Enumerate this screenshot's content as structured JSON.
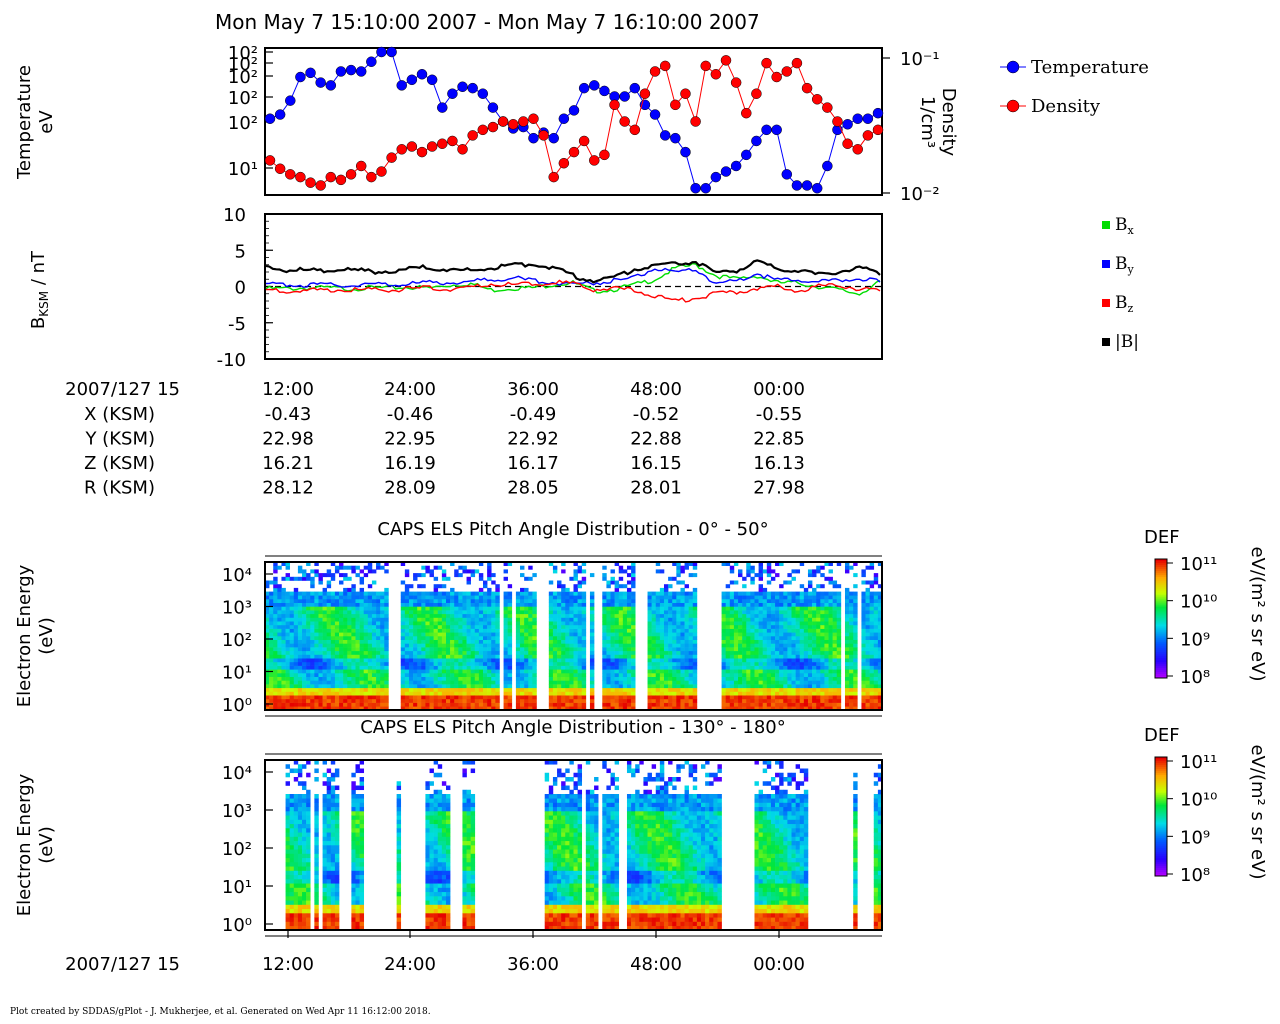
{
  "title": "Mon May 7 15:10:00 2007 - Mon May 7 16:10:00 2007",
  "footer": "Plot created by SDDAS/gPlot - J. Mukherjee, et al.  Generated on Wed Apr 11 16:12:00 2018.",
  "colors": {
    "temperature": "#0000ff",
    "density": "#ff0000",
    "bx": "#00dd00",
    "by": "#0000ff",
    "bz": "#ff0000",
    "bmag": "#000000"
  },
  "chart_data": [
    {
      "type": "line",
      "panel": "temperature-density",
      "ylabel_lines": [
        "Temperature",
        "eV"
      ],
      "y2label_lines": [
        "Density",
        "1/cm³"
      ],
      "yticks_left": [
        "10²",
        "10²",
        "10²",
        "10²",
        "10²",
        "10¹"
      ],
      "yticks_right": [
        "10⁻¹",
        "10⁻²"
      ],
      "ylim_right": [
        0.01,
        0.1
      ],
      "right_scale": "log",
      "legend": [
        "Temperature",
        "Density"
      ],
      "legend_placement": "right",
      "x_minutes": [
        0,
        1,
        2,
        3,
        4,
        5,
        6,
        7,
        8,
        9,
        10,
        11,
        12,
        13,
        14,
        15,
        16,
        17,
        18,
        19,
        20,
        21,
        22,
        23,
        24,
        25,
        26,
        27,
        28,
        29,
        30,
        31,
        32,
        33,
        34,
        35,
        36,
        37,
        38,
        39,
        40,
        41,
        42,
        43,
        44,
        45,
        46,
        47,
        48,
        49,
        50,
        51,
        52,
        53,
        54,
        55,
        56,
        57,
        58,
        59,
        60
      ],
      "series": [
        {
          "name": "Temperature",
          "values_norm": [
            0.52,
            0.55,
            0.65,
            0.82,
            0.85,
            0.78,
            0.76,
            0.86,
            0.87,
            0.86,
            0.93,
            1.0,
            1.0,
            0.76,
            0.8,
            0.84,
            0.8,
            0.6,
            0.7,
            0.75,
            0.74,
            0.7,
            0.6,
            0.5,
            0.45,
            0.46,
            0.38,
            0.42,
            0.38,
            0.52,
            0.58,
            0.74,
            0.76,
            0.72,
            0.68,
            0.68,
            0.74,
            0.62,
            0.55,
            0.4,
            0.38,
            0.28,
            0.02,
            0.02,
            0.1,
            0.14,
            0.18,
            0.26,
            0.36,
            0.44,
            0.44,
            0.12,
            0.04,
            0.04,
            0.02,
            0.18,
            0.44,
            0.48,
            0.52,
            0.52,
            0.56
          ]
        },
        {
          "name": "Density",
          "values_norm": [
            0.22,
            0.16,
            0.12,
            0.1,
            0.06,
            0.04,
            0.1,
            0.08,
            0.12,
            0.18,
            0.1,
            0.14,
            0.24,
            0.3,
            0.32,
            0.28,
            0.32,
            0.34,
            0.36,
            0.3,
            0.4,
            0.44,
            0.46,
            0.5,
            0.48,
            0.5,
            0.52,
            0.4,
            0.1,
            0.2,
            0.28,
            0.36,
            0.22,
            0.26,
            0.62,
            0.5,
            0.44,
            0.7,
            0.86,
            0.9,
            0.62,
            0.7,
            0.5,
            0.9,
            0.84,
            0.94,
            0.78,
            0.56,
            0.7,
            0.92,
            0.82,
            0.86,
            0.92,
            0.74,
            0.66,
            0.6,
            0.5,
            0.34,
            0.3,
            0.4,
            0.44
          ]
        }
      ]
    },
    {
      "type": "line",
      "panel": "magnetic-field",
      "ylabel": "B",
      "ylabel_sub": "KSM",
      "ylabel_unit": " / nT",
      "ylim": [
        -10,
        10
      ],
      "yticks": [
        10,
        5,
        0,
        -5,
        -10
      ],
      "reference_line": 0,
      "legend": [
        {
          "base": "B",
          "sub": "x"
        },
        {
          "base": "B",
          "sub": "y"
        },
        {
          "base": "B",
          "sub": "z"
        },
        {
          "base": "|B|",
          "sub": ""
        }
      ],
      "legend_placement": "right",
      "x_minutes": [
        0,
        2,
        4,
        6,
        8,
        10,
        12,
        14,
        16,
        18,
        20,
        22,
        24,
        26,
        28,
        30,
        32,
        34,
        36,
        38,
        40,
        42,
        44,
        46,
        48,
        50,
        52,
        54,
        56,
        58,
        60
      ],
      "series": [
        {
          "name": "Bx",
          "values": [
            -0.3,
            -0.3,
            -0.2,
            -0.2,
            -0.3,
            -0.2,
            -0.2,
            -0.1,
            -0.2,
            0.2,
            0.4,
            -0.5,
            -0.2,
            -0.2,
            0.3,
            0.5,
            -0.6,
            -0.4,
            0.2,
            1.0,
            2.5,
            3.0,
            1.5,
            1.0,
            1.5,
            0.5,
            0.5,
            0.0,
            -0.5,
            -1.0,
            0.8
          ]
        },
        {
          "name": "By",
          "values": [
            0.2,
            0.3,
            0.2,
            0.2,
            0.2,
            0.3,
            0.3,
            0.4,
            0.5,
            0.6,
            0.7,
            1.0,
            1.2,
            0.8,
            0.6,
            0.4,
            0.5,
            0.8,
            1.2,
            2.5,
            1.8,
            2.4,
            0.4,
            0.8,
            1.8,
            0.8,
            1.0,
            0.6,
            0.8,
            1.2,
            0.6
          ]
        },
        {
          "name": "Bz",
          "values": [
            -0.5,
            -0.6,
            -0.6,
            -0.4,
            -0.5,
            -0.5,
            -0.5,
            -0.3,
            -0.2,
            -0.4,
            -0.2,
            0.4,
            0.2,
            0.3,
            0.6,
            0.4,
            -0.4,
            -0.2,
            -0.6,
            -1.2,
            -2.0,
            -1.6,
            -1.0,
            -0.8,
            -0.2,
            0.0,
            -0.6,
            0.0,
            0.2,
            -0.3,
            -0.6
          ]
        },
        {
          "name": "|B|",
          "values": [
            2.6,
            2.3,
            2.2,
            2.2,
            2.3,
            2.1,
            2.1,
            2.4,
            2.7,
            2.2,
            2.2,
            2.6,
            3.0,
            3.1,
            2.7,
            1.5,
            0.8,
            1.2,
            2.4,
            3.0,
            3.2,
            3.4,
            1.8,
            2.2,
            3.4,
            2.4,
            2.3,
            1.6,
            2.1,
            2.6,
            1.6
          ]
        }
      ]
    },
    {
      "type": "heatmap",
      "panel": "els-0-50",
      "title": "CAPS ELS Pitch Angle Distribution - 0° - 50°",
      "ylabel_lines": [
        "Electron Energy",
        "(eV)"
      ],
      "yticks": [
        "10⁴",
        "10³",
        "10²",
        "10¹",
        "10⁰"
      ],
      "colorbar": {
        "label": "DEF",
        "unit": "eV/(m² s sr eV)",
        "ticks": [
          "10¹¹",
          "10¹⁰",
          "10⁹",
          "10⁸"
        ]
      },
      "gaps_frac": [
        [
          0.2,
          0.215
        ],
        [
          0.375,
          0.385
        ],
        [
          0.4,
          0.405
        ],
        [
          0.435,
          0.455
        ],
        [
          0.52,
          0.525
        ],
        [
          0.53,
          0.545
        ],
        [
          0.6,
          0.62
        ],
        [
          0.695,
          0.74
        ],
        [
          0.93,
          0.94
        ],
        [
          0.955,
          0.965
        ]
      ]
    },
    {
      "type": "heatmap",
      "panel": "els-130-180",
      "title": "CAPS ELS Pitch Angle Distribution - 130° - 180°",
      "ylabel_lines": [
        "Electron Energy",
        "(eV)"
      ],
      "yticks": [
        "10⁴",
        "10³",
        "10²",
        "10¹",
        "10⁰"
      ],
      "colorbar": {
        "label": "DEF",
        "unit": "eV/(m² s sr eV)",
        "ticks": [
          "10¹¹",
          "10¹⁰",
          "10⁹",
          "10⁸"
        ]
      },
      "gaps_frac": [
        [
          0.0,
          0.03
        ],
        [
          0.07,
          0.075
        ],
        [
          0.085,
          0.09
        ],
        [
          0.115,
          0.14
        ],
        [
          0.16,
          0.21
        ],
        [
          0.22,
          0.26
        ],
        [
          0.3,
          0.32
        ],
        [
          0.34,
          0.45
        ],
        [
          0.51,
          0.52
        ],
        [
          0.535,
          0.545
        ],
        [
          0.57,
          0.585
        ],
        [
          0.74,
          0.79
        ],
        [
          0.88,
          0.95
        ],
        [
          0.96,
          0.985
        ]
      ]
    }
  ],
  "time_axis": {
    "ticks": [
      "12:00",
      "24:00",
      "36:00",
      "48:00",
      "00:00"
    ],
    "date_label": "2007/127 15"
  },
  "ephemeris": [
    {
      "label": "X (KSM)",
      "values": [
        "-0.43",
        "-0.46",
        "-0.49",
        "-0.52",
        "-0.55"
      ]
    },
    {
      "label": "Y (KSM)",
      "values": [
        "22.98",
        "22.95",
        "22.92",
        "22.88",
        "22.85"
      ]
    },
    {
      "label": "Z (KSM)",
      "values": [
        "16.21",
        "16.19",
        "16.17",
        "16.15",
        "16.13"
      ]
    },
    {
      "label": "R (KSM)",
      "values": [
        "28.12",
        "28.09",
        "28.05",
        "28.01",
        "27.98"
      ]
    }
  ]
}
